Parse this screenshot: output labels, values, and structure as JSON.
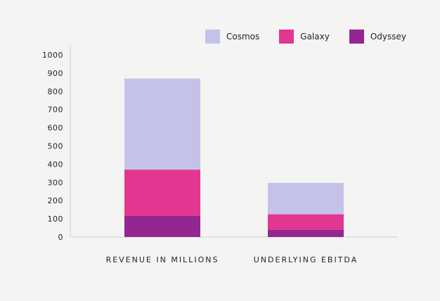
{
  "chart_data": {
    "type": "bar",
    "stacked": true,
    "categories": [
      "REVENUE IN MILLIONS",
      "UNDERLYING EBITDA"
    ],
    "series": [
      {
        "name": "Odyssey",
        "values": [
          117,
          40
        ],
        "color": "#93278f"
      },
      {
        "name": "Galaxy",
        "values": [
          253,
          85
        ],
        "color": "#e33690"
      },
      {
        "name": "Cosmos",
        "values": [
          500,
          172
        ],
        "color": "#c5c2e9"
      }
    ],
    "legend_order": [
      "Cosmos",
      "Galaxy",
      "Odyssey"
    ],
    "ylim": [
      0,
      1000
    ],
    "yticks": [
      0,
      100,
      200,
      300,
      400,
      500,
      600,
      700,
      800,
      900,
      1000
    ],
    "grid": false,
    "legend_position": "top-right",
    "title": "",
    "xlabel": "",
    "ylabel": ""
  }
}
